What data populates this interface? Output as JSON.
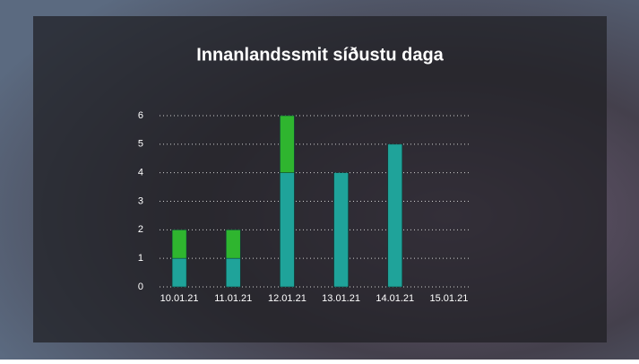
{
  "chart_data": {
    "type": "stacked_bar",
    "title": "Innanlandssmit síðustu daga",
    "categories": [
      "10.01.21",
      "11.01.21",
      "12.01.21",
      "13.01.21",
      "14.01.21",
      "15.01.21"
    ],
    "series": [
      {
        "color": "#1fa39a",
        "values": [
          1,
          1,
          4,
          4,
          5,
          0
        ]
      },
      {
        "color": "#2fb52f",
        "values": [
          1,
          1,
          2,
          0,
          0,
          0
        ]
      }
    ],
    "ylim": [
      0,
      6
    ],
    "yticks": [
      0,
      1,
      2,
      3,
      4,
      5,
      6
    ],
    "grid": true
  }
}
